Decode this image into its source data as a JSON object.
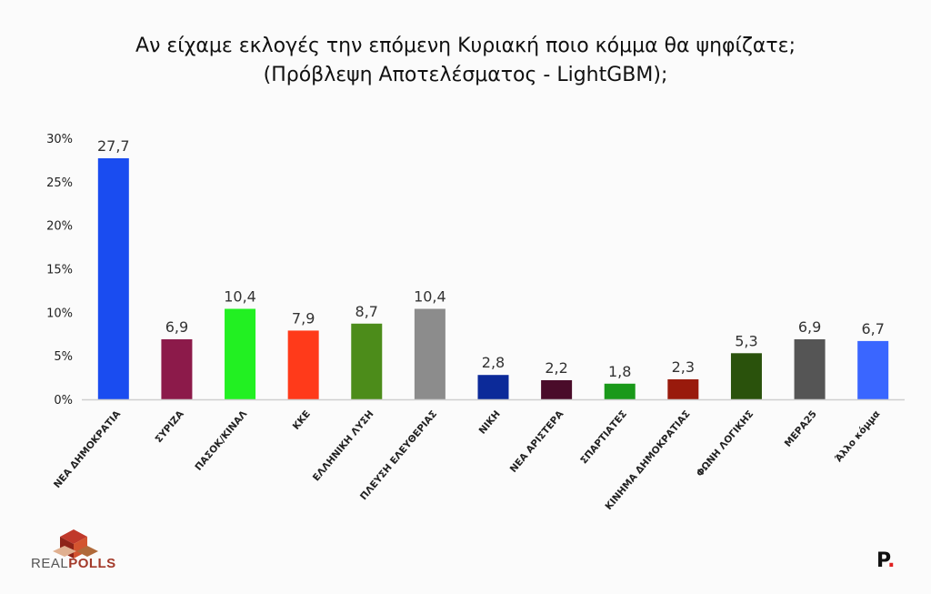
{
  "title_line1": "Αν είχαμε εκλογές την επόμενη Κυριακή ποιο κόμμα θα ψηφίζατε;",
  "title_line2": "(Πρόβλεψη Αποτελέσματος - LightGBM);",
  "logo_left_part1": "REAL",
  "logo_left_part2": "POLLS",
  "logo_right_letter": "P",
  "logo_right_dot": ".",
  "chart_data": {
    "type": "bar",
    "title": "Αν είχαμε εκλογές την επόμενη Κυριακή ποιο κόμμα θα ψηφίζατε; (Πρόβλεψη Αποτελέσματος - LightGBM);",
    "xlabel": "",
    "ylabel": "",
    "ylim": [
      0,
      30
    ],
    "yticks": [
      "0%",
      "5%",
      "10%",
      "15%",
      "20%",
      "25%",
      "30%"
    ],
    "ytick_values": [
      0,
      5,
      10,
      15,
      20,
      25,
      30
    ],
    "grid": false,
    "legend": "none",
    "categories": [
      "ΝΕΑ ΔΗΜΟΚΡΑΤΙΑ",
      "ΣΥΡΙΖΑ",
      "ΠΑΣΟΚ/ΚΙΝΑΛ",
      "ΚΚΕ",
      "ΕΛΛΗΝΙΚΗ ΛΥΣΗ",
      "ΠΛΕΥΣΗ ΕΛΕΥΘΕΡΙΑΣ",
      "ΝΙΚΗ",
      "ΝΕΑ ΑΡΙΣΤΕΡΑ",
      "ΣΠΑΡΤΙΑΤΕΣ",
      "ΚΙΝΗΜΑ ΔΗΜΟΚΡΑΤΙΑΣ",
      "ΦΩΝΗ ΛΟΓΙΚΗΣ",
      "ΜΕΡΑ25",
      "Άλλο κόμμα"
    ],
    "values": [
      27.7,
      6.9,
      10.4,
      7.9,
      8.7,
      10.4,
      2.8,
      2.2,
      1.8,
      2.3,
      5.3,
      6.9,
      6.7
    ],
    "value_labels": [
      "27,7",
      "6,9",
      "10,4",
      "7,9",
      "8,7",
      "10,4",
      "2,8",
      "2,2",
      "1,8",
      "2,3",
      "5,3",
      "6,9",
      "6,7"
    ],
    "colors": [
      "#1a4cf0",
      "#8c1a4a",
      "#22f022",
      "#ff3a1a",
      "#4c8c1a",
      "#8c8c8c",
      "#0c2a99",
      "#4a0c2a",
      "#1a991a",
      "#991a0c",
      "#2a520c",
      "#555555",
      "#3a66ff"
    ]
  }
}
